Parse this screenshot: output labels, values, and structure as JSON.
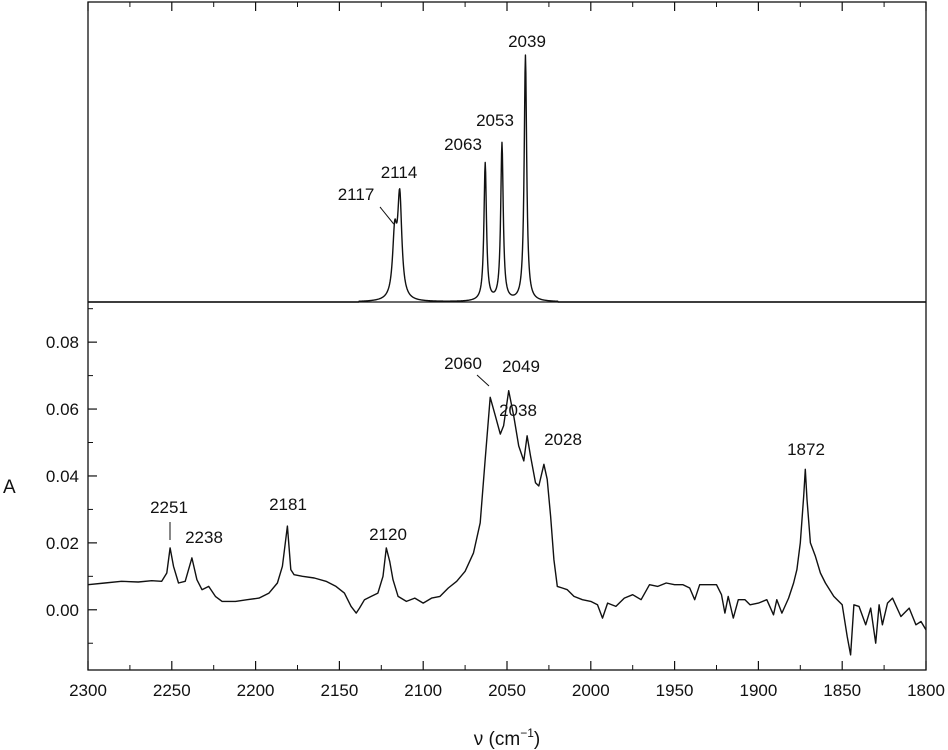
{
  "chart_data": {
    "type": "line",
    "xlabel": "ν (cm",
    "xlabel_sup": "−1",
    "xlabel_end": ")",
    "ylabel": "A",
    "xlim": [
      2300,
      1800
    ],
    "x_ticks": [
      "2300",
      "2250",
      "2200",
      "2150",
      "2100",
      "2050",
      "2000",
      "1950",
      "1900",
      "1850",
      "1800"
    ],
    "lower_panel": {
      "ylim": [
        -0.018,
        0.092
      ],
      "y_ticks": [
        "0.00",
        "0.02",
        "0.04",
        "0.06",
        "0.08"
      ],
      "peak_labels": [
        "2251",
        "2238",
        "2181",
        "2120",
        "2060",
        "2049",
        "2038",
        "2028",
        "1872"
      ],
      "series": [
        {
          "x": [
            2300,
            2290,
            2280,
            2270,
            2262,
            2256,
            2253,
            2251,
            2249,
            2246,
            2242,
            2238,
            2235,
            2232,
            2228,
            2224,
            2220,
            2212,
            2205,
            2198,
            2192,
            2187,
            2184,
            2181,
            2179,
            2177,
            2172,
            2165,
            2158,
            2152,
            2147,
            2143,
            2140,
            2138,
            2135,
            2131,
            2127,
            2124,
            2122,
            2120,
            2118,
            2115,
            2110,
            2105,
            2100,
            2095,
            2090,
            2085,
            2080,
            2075,
            2070,
            2066,
            2063,
            2060,
            2057,
            2054,
            2052,
            2049,
            2046,
            2043,
            2040,
            2038,
            2036,
            2033,
            2031,
            2028,
            2026,
            2024,
            2022,
            2020,
            2017,
            2014,
            2010,
            2005,
            2000,
            1996,
            1993,
            1990,
            1985,
            1980,
            1975,
            1970,
            1965,
            1960,
            1955,
            1950,
            1945,
            1941,
            1938,
            1935,
            1930,
            1925,
            1922,
            1920,
            1918,
            1915,
            1912,
            1908,
            1905,
            1900,
            1895,
            1891,
            1889,
            1886,
            1882,
            1879,
            1877,
            1875,
            1873,
            1872,
            1871,
            1869,
            1866,
            1863,
            1860,
            1855,
            1850,
            1847,
            1845,
            1843,
            1840,
            1836,
            1833,
            1830,
            1828,
            1826,
            1823,
            1820,
            1815,
            1810,
            1806,
            1803,
            1800
          ],
          "y": [
            0.0075,
            0.008,
            0.0085,
            0.0083,
            0.0087,
            0.0085,
            0.011,
            0.0185,
            0.013,
            0.008,
            0.0085,
            0.0155,
            0.009,
            0.006,
            0.007,
            0.004,
            0.0025,
            0.0025,
            0.003,
            0.0035,
            0.005,
            0.008,
            0.013,
            0.025,
            0.012,
            0.0105,
            0.01,
            0.0095,
            0.0085,
            0.007,
            0.005,
            0.001,
            -0.001,
            0.0005,
            0.003,
            0.004,
            0.005,
            0.01,
            0.0185,
            0.0145,
            0.009,
            0.004,
            0.0025,
            0.0035,
            0.002,
            0.0035,
            0.004,
            0.0065,
            0.0085,
            0.0115,
            0.017,
            0.026,
            0.045,
            0.0635,
            0.058,
            0.0525,
            0.055,
            0.0655,
            0.058,
            0.049,
            0.0445,
            0.052,
            0.046,
            0.038,
            0.037,
            0.0435,
            0.039,
            0.028,
            0.015,
            0.007,
            0.0065,
            0.006,
            0.004,
            0.003,
            0.0025,
            0.0015,
            -0.0025,
            0.002,
            0.001,
            0.0035,
            0.0045,
            0.003,
            0.0075,
            0.007,
            0.008,
            0.0075,
            0.0075,
            0.0065,
            0.003,
            0.0075,
            0.0075,
            0.0075,
            0.0045,
            -0.001,
            0.004,
            -0.0025,
            0.003,
            0.003,
            0.0015,
            0.002,
            0.003,
            -0.0015,
            0.003,
            -0.001,
            0.0035,
            0.008,
            0.012,
            0.02,
            0.034,
            0.042,
            0.033,
            0.02,
            0.016,
            0.011,
            0.008,
            0.004,
            0.0015,
            -0.008,
            -0.0135,
            0.0015,
            0.001,
            -0.0045,
            0.0005,
            -0.01,
            0.0015,
            -0.0045,
            0.002,
            0.0035,
            -0.002,
            0.0005,
            -0.0045,
            -0.0035,
            -0.006
          ]
        }
      ]
    },
    "upper_panel": {
      "peak_labels": [
        "2117",
        "2114",
        "2063",
        "2053",
        "2039"
      ],
      "series": [
        {
          "peaks": [
            {
              "x": 2117,
              "h": 0.25
            },
            {
              "x": 2114,
              "h": 0.41
            },
            {
              "x": 2063,
              "h": 0.56
            },
            {
              "x": 2053,
              "h": 0.64
            },
            {
              "x": 2039,
              "h": 1.0
            }
          ]
        }
      ]
    }
  }
}
